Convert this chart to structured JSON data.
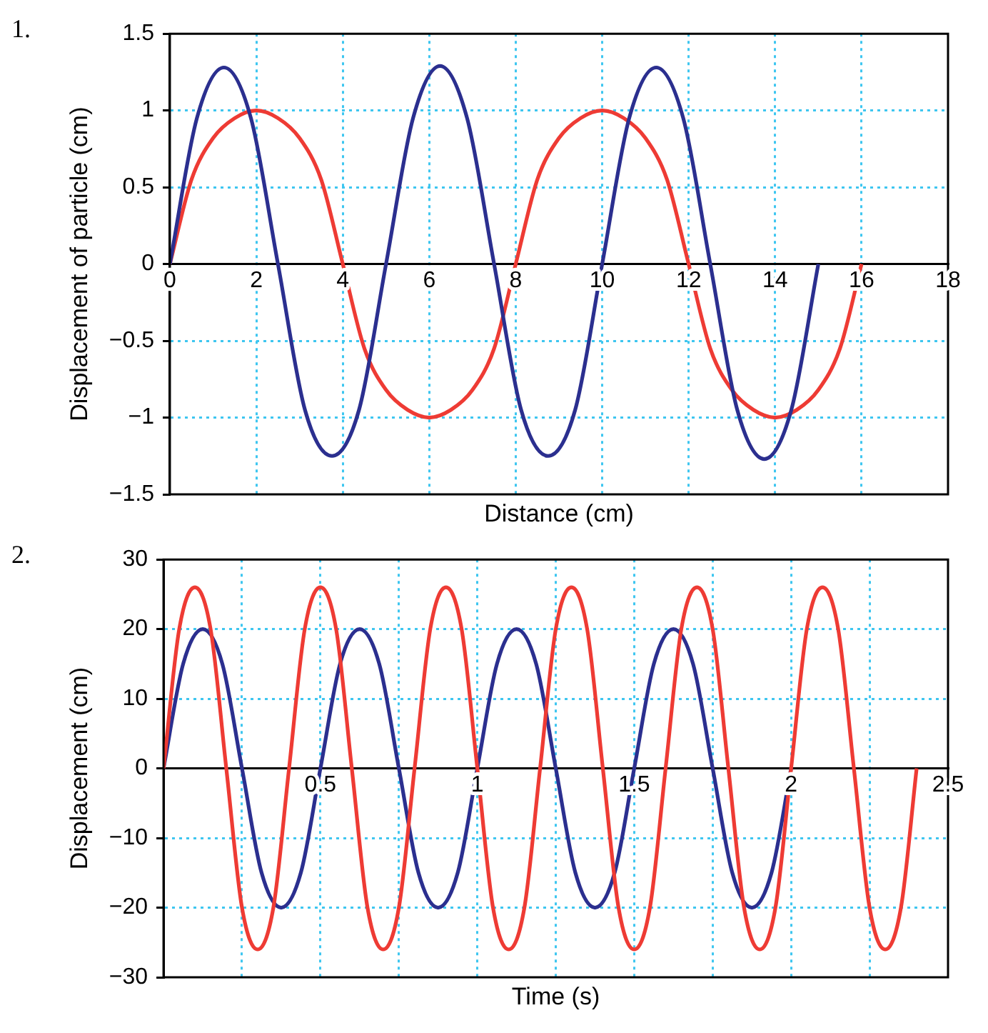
{
  "chart_data": [
    {
      "type": "line",
      "title": "1.",
      "xlabel": "Distance (cm)",
      "ylabel": "Displacement of particle (cm)",
      "xlim": [
        0,
        18
      ],
      "xticks": [
        0,
        2,
        4,
        6,
        8,
        10,
        12,
        14,
        16,
        18
      ],
      "ylim": [
        -1.5,
        1.5
      ],
      "yticks": [
        {
          "value": -1.5,
          "label": "−1.5"
        },
        {
          "value": -1,
          "label": "−1"
        },
        {
          "value": -0.5,
          "label": "−0.5"
        },
        0,
        0.5,
        1,
        1.5
      ],
      "grid": true,
      "series": [
        {
          "color": "#2b2f8f",
          "x": [
            0,
            0.625,
            1.25,
            1.875,
            2.5,
            3.125,
            3.75,
            4.375,
            5,
            5.625,
            6.25,
            6.875,
            7.5,
            8.125,
            8.75,
            9.375,
            10,
            10.625,
            11.25,
            11.875,
            12.5,
            13.125,
            13.75,
            14.375,
            15
          ],
          "values": [
            0,
            0.95,
            1.28,
            0.95,
            0,
            -0.95,
            -1.25,
            -0.95,
            0,
            0.95,
            1.29,
            0.95,
            0,
            -0.95,
            -1.25,
            -0.95,
            0,
            0.95,
            1.28,
            0.95,
            0,
            -0.95,
            -1.27,
            -0.95,
            0
          ]
        },
        {
          "color": "#ee3b34",
          "x": [
            0,
            0.5,
            1,
            1.5,
            2,
            2.5,
            3,
            3.5,
            4,
            4.5,
            5,
            5.5,
            6,
            6.5,
            7,
            7.5,
            8,
            8.5,
            9,
            9.5,
            10,
            10.5,
            11,
            11.5,
            12,
            12.5,
            13,
            13.5,
            14,
            14.5,
            15,
            15.5,
            16
          ],
          "values": [
            0,
            0.55,
            0.82,
            0.95,
            1,
            0.95,
            0.82,
            0.55,
            0,
            -0.55,
            -0.82,
            -0.95,
            -1,
            -0.95,
            -0.82,
            -0.55,
            0,
            0.55,
            0.82,
            0.95,
            1,
            0.95,
            0.82,
            0.55,
            0,
            -0.55,
            -0.82,
            -0.95,
            -1,
            -0.95,
            -0.82,
            -0.55,
            0
          ]
        }
      ]
    },
    {
      "type": "line",
      "title": "2.",
      "xlabel": "Time (s)",
      "ylabel": "Displacement (cm)",
      "xlim": [
        0,
        2.5
      ],
      "xticks": [
        {
          "value": 0.25,
          "label": null
        },
        0.5,
        {
          "value": 0.75,
          "label": null
        },
        1,
        {
          "value": 1.25,
          "label": null
        },
        1.5,
        {
          "value": 1.75,
          "label": null
        },
        2,
        {
          "value": 2.25,
          "label": null
        },
        2.5
      ],
      "ylim": [
        -30,
        30
      ],
      "yticks": [
        {
          "value": -30,
          "label": "−30"
        },
        {
          "value": -20,
          "label": "−20"
        },
        {
          "value": -10,
          "label": "−10"
        },
        0,
        10,
        20,
        30
      ],
      "grid": true,
      "series": [
        {
          "color": "#ee3b34",
          "x": [
            0,
            0.05,
            0.1,
            0.15,
            0.2,
            0.25,
            0.3,
            0.35,
            0.4,
            0.45,
            0.5,
            0.55,
            0.6,
            0.65,
            0.7,
            0.75,
            0.8,
            0.85,
            0.9,
            0.95,
            1,
            1.05,
            1.1,
            1.15,
            1.2,
            1.25,
            1.3,
            1.35,
            1.4,
            1.45,
            1.5,
            1.55,
            1.6,
            1.65,
            1.7,
            1.75,
            1.8,
            1.85,
            1.9,
            1.95,
            2,
            2.05,
            2.1,
            2.15,
            2.2,
            2.25,
            2.3,
            2.35,
            2.4
          ],
          "values": [
            0,
            20,
            26,
            20,
            0,
            -20,
            -26,
            -20,
            0,
            20,
            26,
            20,
            0,
            -20,
            -26,
            -20,
            0,
            20,
            26,
            20,
            0,
            -20,
            -26,
            -20,
            0,
            20,
            26,
            20,
            0,
            -20,
            -26,
            -20,
            0,
            20,
            26,
            20,
            0,
            -20,
            -26,
            -20,
            0,
            20,
            26,
            20,
            0,
            -20,
            -26,
            -20,
            0
          ]
        },
        {
          "color": "#2b2f8f",
          "x": [
            0,
            0.0625,
            0.125,
            0.1875,
            0.25,
            0.3125,
            0.375,
            0.4375,
            0.5,
            0.5625,
            0.625,
            0.6875,
            0.75,
            0.8125,
            0.875,
            0.9375,
            1,
            1.0625,
            1.125,
            1.1875,
            1.25,
            1.3125,
            1.375,
            1.4375,
            1.5,
            1.5625,
            1.625,
            1.6875,
            1.75,
            1.8125,
            1.875,
            1.9375,
            2
          ],
          "values": [
            0,
            15,
            20,
            15,
            0,
            -15,
            -20,
            -15,
            0,
            15,
            20,
            15,
            0,
            -15,
            -20,
            -15,
            0,
            15,
            20,
            15,
            0,
            -15,
            -20,
            -15,
            0,
            15,
            20,
            15,
            0,
            -15,
            -20,
            -15,
            0
          ]
        }
      ]
    }
  ]
}
